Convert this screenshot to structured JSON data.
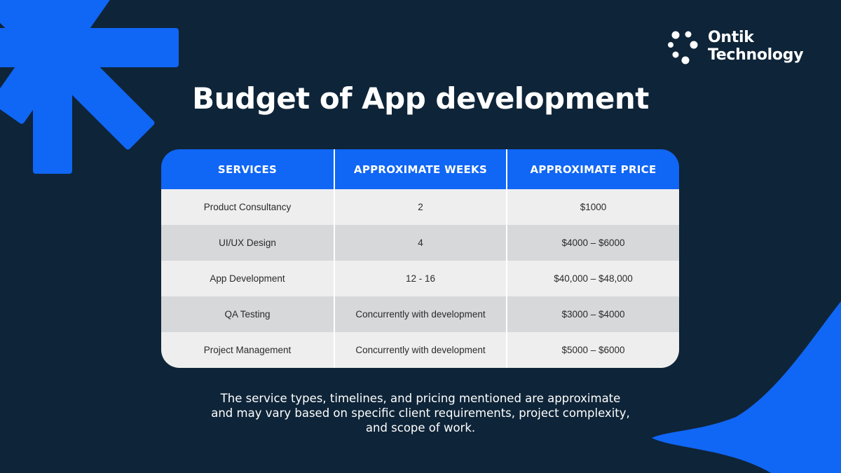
{
  "brand": {
    "line1": "Ontik",
    "line2": "Technology",
    "icon": "dots-logo-icon"
  },
  "title": "Budget of App development",
  "table": {
    "headers": [
      "SERVICES",
      "APPROXIMATE WEEKS",
      "APPROXIMATE PRICE"
    ],
    "rows": [
      [
        "Product Consultancy",
        "2",
        "$1000"
      ],
      [
        "UI/UX Design",
        "4",
        "$4000 – $6000"
      ],
      [
        "App Development",
        "12 - 16",
        "$40,000 – $48,000"
      ],
      [
        "QA Testing",
        "Concurrently with development",
        "$3000 – $4000"
      ],
      [
        "Project Management",
        "Concurrently with development",
        "$5000 – $6000"
      ]
    ]
  },
  "note": {
    "line1": "The service types, timelines, and pricing mentioned are approximate",
    "line2": "and may vary based on specific client requirements, project complexity,",
    "line3": "and scope of work."
  },
  "colors": {
    "background": "#0e2438",
    "accent": "#1066f5",
    "row_light": "#eeeeee",
    "row_dark": "#d6d8da"
  }
}
